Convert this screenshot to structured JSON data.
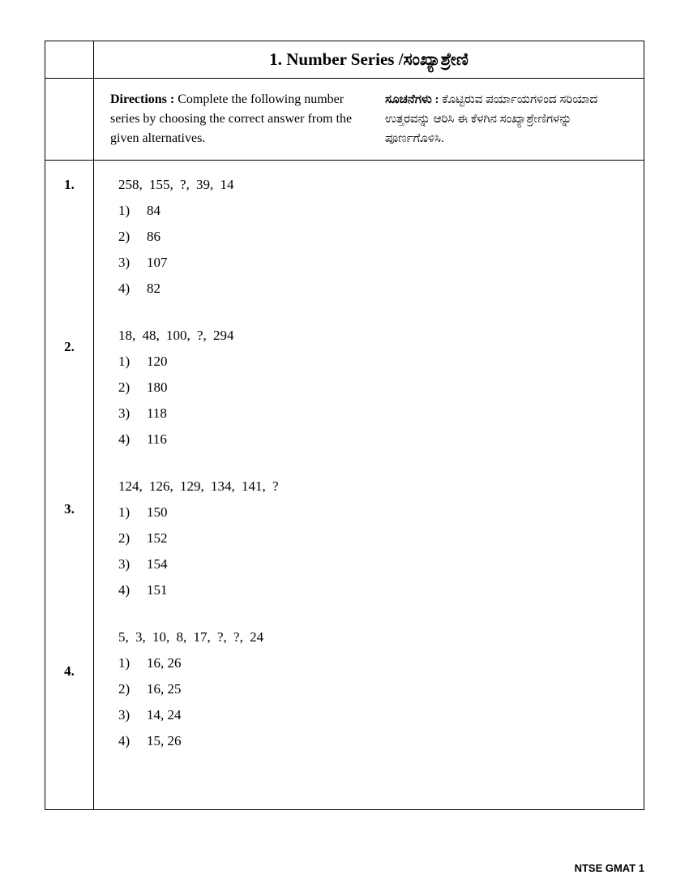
{
  "section_title": "1.  Number  Series /ಸಂಖ್ಯಾಶ್ರೇಣಿ",
  "directions": {
    "english_label": "Directions : ",
    "english_text": "Complete the following number series by choosing the correct answer from the given alternatives.",
    "kannada_label": "ಸೂಚನೆಗಳು : ",
    "kannada_text": "ಕೊಟ್ಟಿರುವ ಪರ್ಯಾಯಗಳಿಂದ ಸರಿಯಾದ ಉತ್ತರವನ್ನು ಆರಿಸಿ ಈ ಕೆಳಗಿನ ಸಂಖ್ಯಾಶ್ರೇಣಿಗಳನ್ನು ಪೂರ್ಣಗೊಳಿಸಿ."
  },
  "questions": [
    {
      "num": "1.",
      "series": "258,   155,    ?,    39,    14",
      "options": [
        {
          "label": "1)",
          "value": "84"
        },
        {
          "label": "2)",
          "value": "86"
        },
        {
          "label": "3)",
          "value": "107"
        },
        {
          "label": "4)",
          "value": "82"
        }
      ]
    },
    {
      "num": "2.",
      "series": "18,   48,   100,   ?,  294",
      "options": [
        {
          "label": "1)",
          "value": "120"
        },
        {
          "label": "2)",
          "value": "180"
        },
        {
          "label": "3)",
          "value": "118"
        },
        {
          "label": "4)",
          "value": "116"
        }
      ]
    },
    {
      "num": "3.",
      "series": "124,  126,  129,  134,  141,  ?",
      "options": [
        {
          "label": "1)",
          "value": "150"
        },
        {
          "label": "2)",
          "value": "152"
        },
        {
          "label": "3)",
          "value": "154"
        },
        {
          "label": "4)",
          "value": "151"
        }
      ]
    },
    {
      "num": "4.",
      "series": "5,  3,  10,  8,  17, ?,  ?,  24",
      "options": [
        {
          "label": "1)",
          "value": "16, 26"
        },
        {
          "label": "2)",
          "value": "16, 25"
        },
        {
          "label": "3)",
          "value": "14, 24"
        },
        {
          "label": "4)",
          "value": "15, 26"
        }
      ]
    }
  ],
  "footer": "NTSE GMAT 1"
}
